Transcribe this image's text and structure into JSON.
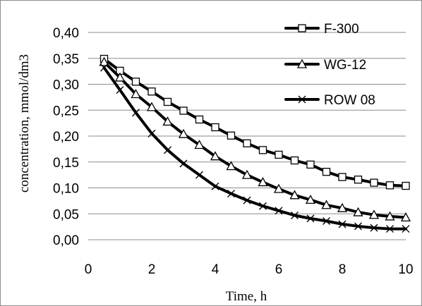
{
  "chart_data": {
    "type": "line",
    "title": "",
    "xlabel": "Time, h",
    "ylabel": "concentration, mmol/dm3",
    "xlim": [
      0,
      10
    ],
    "ylim": [
      0,
      0.4
    ],
    "x_ticks": [
      0,
      2,
      4,
      6,
      8,
      10
    ],
    "x_tick_labels": [
      "0",
      "2",
      "4",
      "6",
      "8",
      "10"
    ],
    "y_ticks": [
      0,
      0.05,
      0.1,
      0.15,
      0.2,
      0.25,
      0.3,
      0.35,
      0.4
    ],
    "y_tick_labels": [
      "0,00",
      "0,05",
      "0,10",
      "0,15",
      "0,20",
      "0,25",
      "0,30",
      "0,35",
      "0,40"
    ],
    "grid": "horizontal",
    "legend_position": "top-right",
    "x": [
      0.5,
      1,
      1.5,
      2,
      2.5,
      3,
      3.5,
      4,
      4.5,
      5,
      5.5,
      6,
      6.5,
      7,
      7.5,
      8,
      8.5,
      9,
      9.5,
      10
    ],
    "series": [
      {
        "name": "F-300",
        "marker": "square",
        "values": [
          0.349,
          0.326,
          0.305,
          0.286,
          0.266,
          0.249,
          0.232,
          0.217,
          0.201,
          0.186,
          0.173,
          0.164,
          0.153,
          0.145,
          0.131,
          0.121,
          0.116,
          0.11,
          0.105,
          0.104
        ]
      },
      {
        "name": "WG-12",
        "marker": "triangle",
        "values": [
          0.343,
          0.313,
          0.281,
          0.256,
          0.228,
          0.204,
          0.183,
          0.161,
          0.142,
          0.125,
          0.111,
          0.098,
          0.086,
          0.077,
          0.067,
          0.061,
          0.053,
          0.048,
          0.045,
          0.043
        ]
      },
      {
        "name": "ROW 08",
        "marker": "cross",
        "values": [
          0.332,
          0.289,
          0.245,
          0.205,
          0.173,
          0.147,
          0.125,
          0.103,
          0.089,
          0.076,
          0.065,
          0.056,
          0.047,
          0.041,
          0.036,
          0.03,
          0.026,
          0.023,
          0.021,
          0.021
        ]
      }
    ],
    "colors": {
      "line": "#000000",
      "grid": "#8c8c8c",
      "background": "#ffffff"
    }
  }
}
